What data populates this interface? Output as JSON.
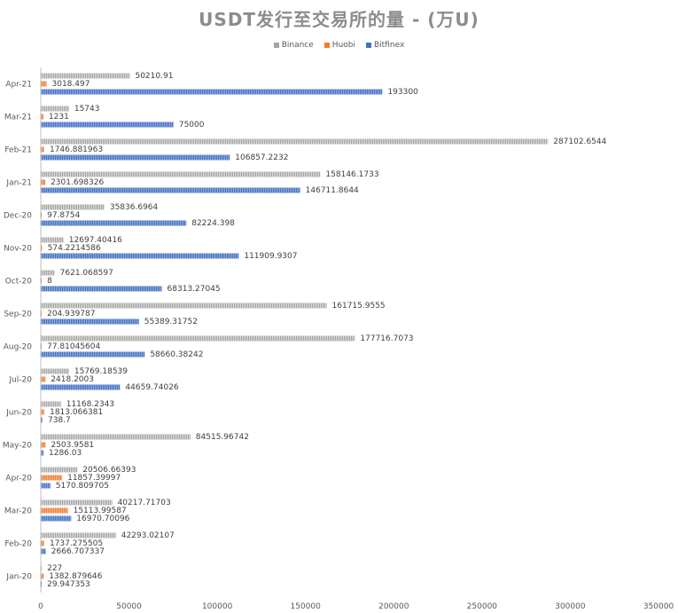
{
  "chart_data": {
    "type": "bar",
    "orientation": "horizontal",
    "title": "USDT发行至交易所的量 - (万U)",
    "categories": [
      "Jan-20",
      "Feb-20",
      "Mar-20",
      "Apr-20",
      "May-20",
      "Jun-20",
      "Jul-20",
      "Aug-20",
      "Sep-20",
      "Oct-20",
      "Nov-20",
      "Dec-20",
      "Jan-21",
      "Feb-21",
      "Mar-21",
      "Apr-21"
    ],
    "series": [
      {
        "name": "Binance",
        "color": "#a5a5a5",
        "values": [
          227,
          42293.02107,
          40217.71703,
          20506.66393,
          84515.96742,
          11168.2343,
          15769.18539,
          177716.7073,
          161715.9555,
          7621.068597,
          12697.40416,
          35836.6964,
          158146.1733,
          287102.6544,
          15743,
          50210.91
        ],
        "labels": [
          "227",
          "42293.02107",
          "40217.71703",
          "20506.66393",
          "84515.96742",
          "11168.2343",
          "15769.18539",
          "177716.7073",
          "161715.9555",
          "7621.068597",
          "12697.40416",
          "35836.6964",
          "158146.1733",
          "287102.6544",
          "15743",
          "50210.91"
        ]
      },
      {
        "name": "Huobi",
        "color": "#ed7d31",
        "values": [
          1382.879646,
          1737.275505,
          15113.99587,
          11857.39997,
          2503.9581,
          1813.066381,
          2418.2003,
          77.81045604,
          204.939787,
          8,
          574.2214586,
          97.8754,
          2301.698326,
          1746.881963,
          1231,
          3018.497
        ],
        "labels": [
          "1382.879646",
          "1737.275505",
          "15113.99587",
          "11857.39997",
          "2503.9581",
          "1813.066381",
          "2418.2003",
          "77.81045604",
          "204.939787",
          "8",
          "574.2214586",
          "97.8754",
          "2301.698326",
          "1746.881963",
          "1231",
          "3018.497"
        ]
      },
      {
        "name": "Bitfinex",
        "color": "#4472c4",
        "values": [
          29.947353,
          2666.707337,
          16970.70096,
          5170.809705,
          1286.03,
          738.7,
          44659.74026,
          58660.38242,
          55389.31752,
          68313.27045,
          111909.9307,
          82224.398,
          146711.8644,
          106857.2232,
          75000,
          193300
        ],
        "labels": [
          "29.947353",
          "2666.707337",
          "16970.70096",
          "5170.809705",
          "1286.03",
          "738.7",
          "44659.74026",
          "58660.38242",
          "55389.31752",
          "68313.27045",
          "111909.9307",
          "82224.398",
          "146711.8644",
          "106857.2232",
          "75000",
          "193300"
        ]
      }
    ],
    "xlim": [
      0,
      350000
    ],
    "xticks": [
      "0",
      "50000",
      "100000",
      "150000",
      "200000",
      "250000",
      "300000",
      "350000"
    ],
    "xtick_values": [
      0,
      50000,
      100000,
      150000,
      200000,
      250000,
      300000,
      350000
    ],
    "grid": false,
    "legend_position": "top"
  }
}
